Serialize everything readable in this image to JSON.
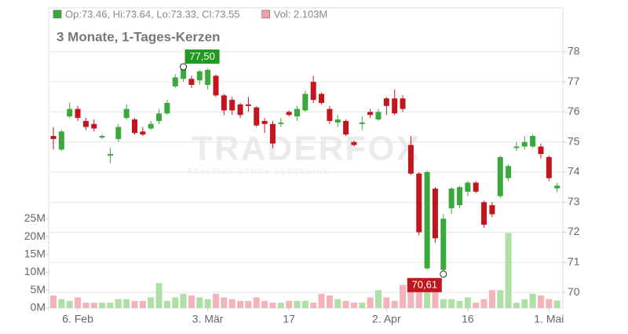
{
  "chart_data": {
    "type": "candlestick",
    "subtitle": "3 Monate, 1-Tages-Kerzen",
    "legend": [
      {
        "name": "Op:73.46, Hi:73.64, Lo:73.33, Cl:73.55",
        "color": "#3aa83a"
      },
      {
        "name": "Vol: 2.103M",
        "color": "#f0a0a8"
      }
    ],
    "watermark": [
      "TRADERFOX",
      "REALTIME STOCK SCREENING"
    ],
    "up_color": "#3aa83a",
    "down_color": "#c2151d",
    "volume_up_color": "#aee0a6",
    "volume_down_color": "#f3b3b8",
    "categories": [
      null,
      null,
      null,
      "6. Feb",
      null,
      null,
      null,
      null,
      null,
      null,
      null,
      null,
      null,
      null,
      null,
      null,
      null,
      null,
      null,
      "3. Mär",
      null,
      null,
      null,
      null,
      null,
      null,
      null,
      null,
      null,
      "17",
      null,
      null,
      null,
      null,
      null,
      null,
      null,
      null,
      null,
      null,
      null,
      "2. Apr",
      null,
      null,
      null,
      null,
      null,
      null,
      null,
      null,
      null,
      "16",
      null,
      null,
      null,
      null,
      null,
      null,
      null,
      null,
      null,
      "1. Mai",
      null
    ],
    "open": [
      75.2,
      74.75,
      75.85,
      76.1,
      75.7,
      75.6,
      75.15,
      74.55,
      75.1,
      75.8,
      75.75,
      75.35,
      75.45,
      75.7,
      75.95,
      76.85,
      77.1,
      77.1,
      77.05,
      76.9,
      77.2,
      76.55,
      76.4,
      76.25,
      76.25,
      76.15,
      75.7,
      75.6,
      75.6,
      76.0,
      75.85,
      76.05,
      77.0,
      76.6,
      76.1,
      75.65,
      75.7,
      75.0,
      75.6,
      76.0,
      75.75,
      76.45,
      76.45,
      76.45,
      74.9,
      73.95,
      70.8,
      73.45,
      70.75,
      72.8,
      72.9,
      73.35,
      73.65,
      73.0,
      72.9,
      73.2,
      73.8,
      74.8,
      74.85,
      74.85,
      74.85,
      74.5,
      73.46
    ],
    "high": [
      75.5,
      75.4,
      76.3,
      76.2,
      75.8,
      75.75,
      75.25,
      74.8,
      75.6,
      76.25,
      75.8,
      75.5,
      75.7,
      76.1,
      76.4,
      77.25,
      77.5,
      77.2,
      77.4,
      77.45,
      77.25,
      76.6,
      76.5,
      76.3,
      76.5,
      76.2,
      75.8,
      75.7,
      75.8,
      76.05,
      76.2,
      76.7,
      77.2,
      76.65,
      76.2,
      75.9,
      75.75,
      75.05,
      75.85,
      76.1,
      76.1,
      76.5,
      76.75,
      76.55,
      75.2,
      74.0,
      74.05,
      73.5,
      72.6,
      73.5,
      73.55,
      73.7,
      73.7,
      73.05,
      73.0,
      74.55,
      74.25,
      75.0,
      75.2,
      75.25,
      74.95,
      74.55,
      73.64
    ],
    "low": [
      74.75,
      74.7,
      75.8,
      75.7,
      75.4,
      75.35,
      75.1,
      74.3,
      75.0,
      75.75,
      75.25,
      75.2,
      75.4,
      75.6,
      75.9,
      76.8,
      77.0,
      76.8,
      76.9,
      76.75,
      76.5,
      75.9,
      75.9,
      75.8,
      76.0,
      75.5,
      75.3,
      74.8,
      75.5,
      75.85,
      75.7,
      76.0,
      76.3,
      76.25,
      75.6,
      75.5,
      75.2,
      74.85,
      75.4,
      75.8,
      75.7,
      75.9,
      75.9,
      76.0,
      73.9,
      71.9,
      70.75,
      71.65,
      70.61,
      72.6,
      72.8,
      73.2,
      73.3,
      72.15,
      72.5,
      73.15,
      73.7,
      74.7,
      74.75,
      74.8,
      74.45,
      73.7,
      73.33
    ],
    "close": [
      75.1,
      75.35,
      76.1,
      75.8,
      75.5,
      75.45,
      75.2,
      74.6,
      75.5,
      76.1,
      75.3,
      75.25,
      75.6,
      75.95,
      76.3,
      77.15,
      77.45,
      76.9,
      77.35,
      77.4,
      76.55,
      76.05,
      76.05,
      75.9,
      76.2,
      75.55,
      75.6,
      74.95,
      75.65,
      75.9,
      76.1,
      76.6,
      76.4,
      76.3,
      75.7,
      75.75,
      75.25,
      74.9,
      75.65,
      75.9,
      76.0,
      76.2,
      75.95,
      76.1,
      73.95,
      72.0,
      74.0,
      71.8,
      72.45,
      73.45,
      73.5,
      73.65,
      73.35,
      72.25,
      72.6,
      74.5,
      74.2,
      74.85,
      75.0,
      75.2,
      74.6,
      73.8,
      73.55
    ],
    "volume": [
      3.5,
      2.5,
      2,
      3,
      1.5,
      1.5,
      1.5,
      1.5,
      2.5,
      2.5,
      2,
      2,
      3,
      7,
      2,
      3,
      4,
      3.5,
      3,
      2.5,
      4,
      3,
      2.5,
      2,
      2,
      3,
      2,
      1.5,
      1.5,
      2,
      2,
      2,
      1.5,
      4,
      3.5,
      2.5,
      2,
      1.5,
      1.5,
      3,
      5,
      3,
      2,
      6.5,
      5,
      7,
      6,
      5,
      2.5,
      2.5,
      2,
      3,
      1.5,
      2.5,
      5,
      5,
      21,
      1.5,
      2.5,
      4,
      3.5,
      2.5,
      2.103
    ],
    "annotations": [
      {
        "label": "77,50",
        "value": 77.5,
        "color": "#1f9a1f"
      },
      {
        "label": "70,61",
        "value": 70.61,
        "color": "#c2151d"
      }
    ],
    "ylim": [
      69.48,
      79.46
    ],
    "yticks": [
      70,
      71,
      72,
      73,
      74,
      75,
      76,
      77,
      78
    ],
    "y2lim": [
      0,
      84
    ],
    "y2ticks": [
      {
        "value": 0,
        "label": "0M"
      },
      {
        "value": 5,
        "label": "5M"
      },
      {
        "value": 10,
        "label": "10M"
      },
      {
        "value": 15,
        "label": "15M"
      },
      {
        "value": 20,
        "label": "20M"
      },
      {
        "value": 25,
        "label": "25M"
      }
    ],
    "grid": true
  }
}
